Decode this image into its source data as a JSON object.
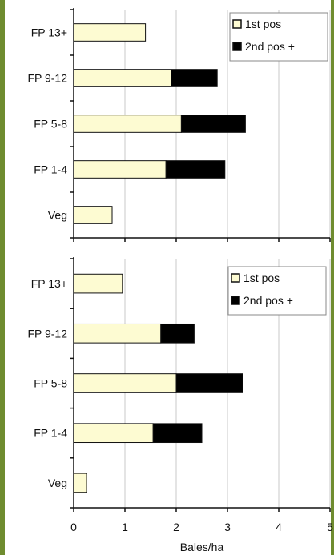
{
  "chart_data": [
    {
      "type": "bar",
      "orientation": "horizontal",
      "stacked": true,
      "categories": [
        "FP 13+",
        "FP 9-12",
        "FP 5-8",
        "FP 1-4",
        "Veg"
      ],
      "series": [
        {
          "name": "1st pos",
          "values": [
            1.4,
            1.9,
            2.1,
            1.8,
            0.75
          ],
          "color": "#fdfbd2"
        },
        {
          "name": "2nd pos +",
          "values": [
            0.0,
            0.9,
            1.25,
            1.15,
            0.0
          ],
          "color": "#000000"
        }
      ],
      "xlim": [
        0,
        5
      ],
      "xticks": [],
      "xlabel": "",
      "grid": "vertical",
      "legend": {
        "position": "top-right",
        "labels": [
          "1st pos",
          "2nd pos +"
        ]
      }
    },
    {
      "type": "bar",
      "orientation": "horizontal",
      "stacked": true,
      "categories": [
        "FP 13+",
        "FP 9-12",
        "FP 5-8",
        "FP 1-4",
        "Veg"
      ],
      "series": [
        {
          "name": "1st pos",
          "values": [
            0.95,
            1.7,
            2.0,
            1.55,
            0.25
          ],
          "color": "#fdfbd2"
        },
        {
          "name": "2nd pos +",
          "values": [
            0.0,
            0.65,
            1.3,
            0.95,
            0.0
          ],
          "color": "#000000"
        }
      ],
      "xlim": [
        0,
        5
      ],
      "xticks": [
        "0",
        "1",
        "2",
        "3",
        "4",
        "5"
      ],
      "xlabel": "Bales/ha",
      "grid": "vertical",
      "legend": {
        "position": "top-right",
        "labels": [
          "1st pos",
          "2nd pos +"
        ]
      }
    }
  ],
  "colors": {
    "frame": "#6f8c2f",
    "grid": "#c8c8c8",
    "axis": "#111111"
  }
}
